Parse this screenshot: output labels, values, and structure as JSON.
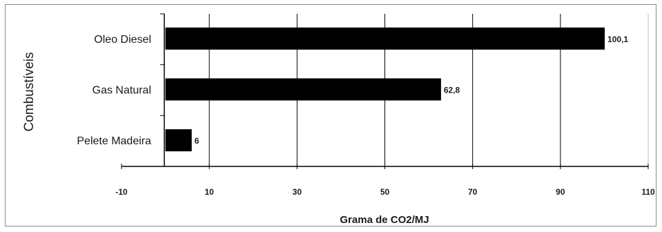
{
  "chart_data": {
    "type": "bar",
    "orientation": "horizontal",
    "categories": [
      "Oleo Diesel",
      "Gas Natural",
      "Pelete Madeira"
    ],
    "values": [
      100.1,
      62.8,
      6
    ],
    "value_labels": [
      "100,1",
      "62,8",
      "6"
    ],
    "xlabel": "Grama de CO2/MJ",
    "ylabel": "Combustíveis",
    "xlim": [
      -10,
      110
    ],
    "xticks": [
      -10,
      10,
      30,
      50,
      70,
      90,
      110
    ],
    "xtick_labels": [
      "-10",
      "10",
      "30",
      "50",
      "70",
      "90",
      "110"
    ],
    "grid": "vertical",
    "bar_color": "#000000",
    "grid_color": "#000000"
  }
}
